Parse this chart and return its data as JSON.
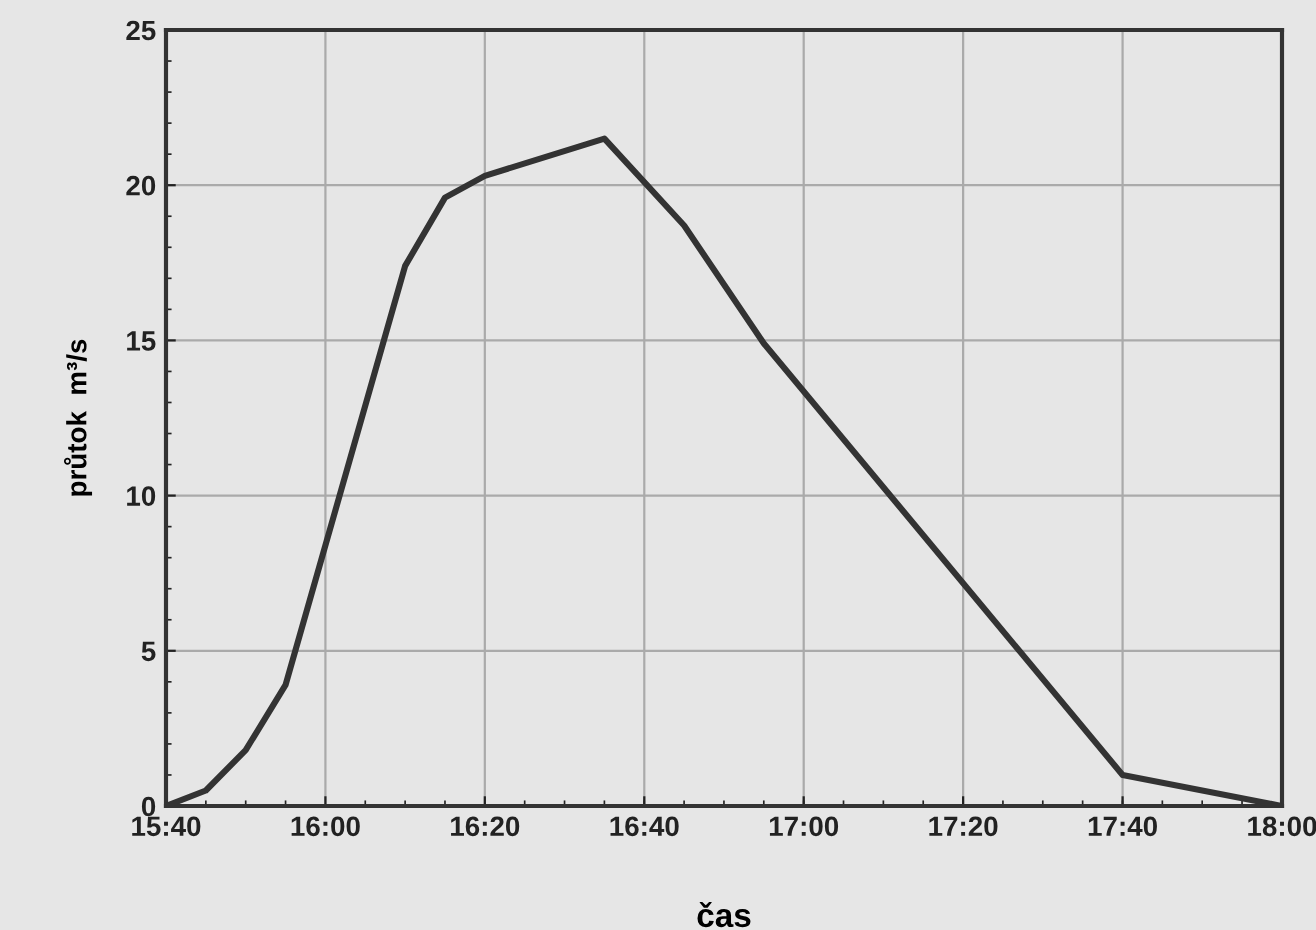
{
  "chart_data": {
    "type": "line",
    "xlabel": "čas",
    "ylabel": "průtok  m³/s",
    "x": [
      15.6667,
      15.75,
      15.8333,
      15.9167,
      16.1667,
      16.25,
      16.3333,
      16.5833,
      16.75,
      16.9167,
      17.6667,
      18
    ],
    "series": [
      {
        "color": "#333333",
        "values": [
          0,
          0.5,
          1.8,
          3.9,
          17.4,
          19.6,
          20.3,
          21.5,
          18.7,
          14.9,
          1.0,
          0
        ]
      }
    ],
    "xlim": [
      15.6667,
      18
    ],
    "xticks": [
      {
        "value": 15.6667,
        "label": "15:40"
      },
      {
        "value": 16,
        "label": "16:00"
      },
      {
        "value": 16.3333,
        "label": "16:20"
      },
      {
        "value": 16.6667,
        "label": "16:40"
      },
      {
        "value": 17,
        "label": "17:00"
      },
      {
        "value": 17.3333,
        "label": "17:20"
      },
      {
        "value": 17.6667,
        "label": "17:40"
      },
      {
        "value": 18,
        "label": "18:00"
      }
    ],
    "ylim": [
      0,
      25
    ],
    "yticks": [
      0,
      5,
      10,
      15,
      20,
      25
    ],
    "grid": true,
    "marker": "none",
    "line_style": "solid"
  }
}
